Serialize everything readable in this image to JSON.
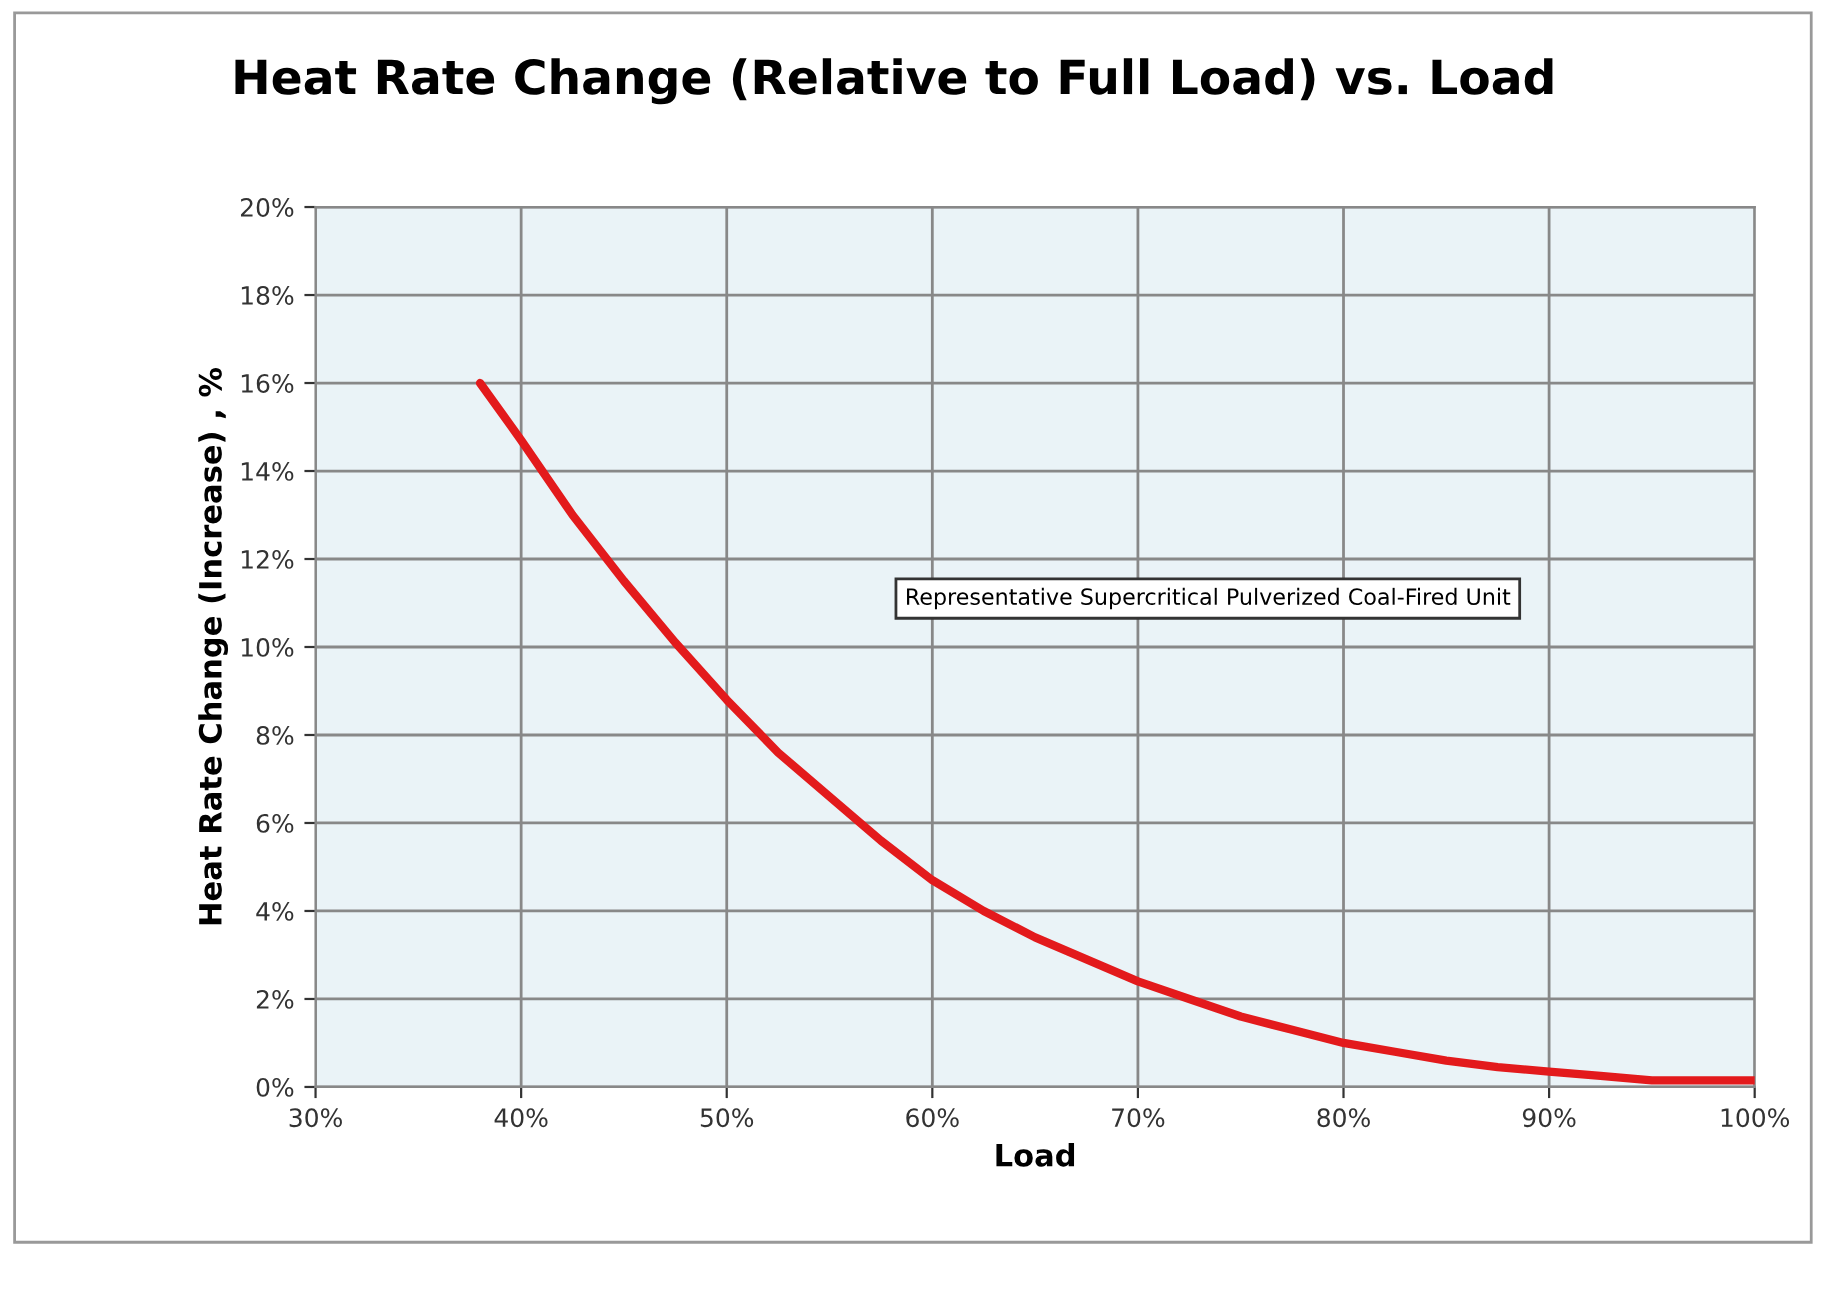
{
  "chart_data": {
    "type": "line",
    "title": "Heat Rate Change (Relative to Full Load) vs. Load",
    "xlabel": "Load",
    "ylabel": "Heat Rate Change (Increase) , %",
    "annotations": [
      "Representative Supercritical Pulverized Coal-Fired Unit"
    ],
    "series": [
      {
        "color": "#e31a1c",
        "x": [
          38,
          40,
          42.5,
          45,
          47.5,
          50,
          52.5,
          55,
          57.5,
          60,
          62.5,
          65,
          67.5,
          70,
          72.5,
          75,
          77.5,
          80,
          82.5,
          85,
          87.5,
          90,
          92.5,
          95,
          97.5,
          100
        ],
        "values": [
          16.0,
          14.7,
          13.0,
          11.5,
          10.1,
          8.8,
          7.6,
          6.6,
          5.6,
          4.7,
          4.0,
          3.4,
          2.9,
          2.4,
          2.0,
          1.6,
          1.3,
          1.0,
          0.8,
          0.6,
          0.45,
          0.35,
          0.25,
          0.15,
          0.15,
          0.15
        ]
      }
    ],
    "xlim": [
      30,
      100
    ],
    "ylim": [
      0,
      20
    ],
    "xticks": [
      {
        "value": 30,
        "label": "30%"
      },
      {
        "value": 40,
        "label": "40%"
      },
      {
        "value": 50,
        "label": "50%"
      },
      {
        "value": 60,
        "label": "60%"
      },
      {
        "value": 70,
        "label": "70%"
      },
      {
        "value": 80,
        "label": "80%"
      },
      {
        "value": 90,
        "label": "90%"
      },
      {
        "value": 100,
        "label": "100%"
      }
    ],
    "yticks": [
      {
        "value": 0,
        "label": "0%"
      },
      {
        "value": 2,
        "label": "2%"
      },
      {
        "value": 4,
        "label": "4%"
      },
      {
        "value": 6,
        "label": "6%"
      },
      {
        "value": 8,
        "label": "8%"
      },
      {
        "value": 10,
        "label": "10%"
      },
      {
        "value": 12,
        "label": "12%"
      },
      {
        "value": 14,
        "label": "14%"
      },
      {
        "value": 16,
        "label": "16%"
      },
      {
        "value": 18,
        "label": "18%"
      },
      {
        "value": 20,
        "label": "20%"
      }
    ],
    "grid": true,
    "legend": false,
    "marker": "none",
    "line_style": "solid"
  }
}
